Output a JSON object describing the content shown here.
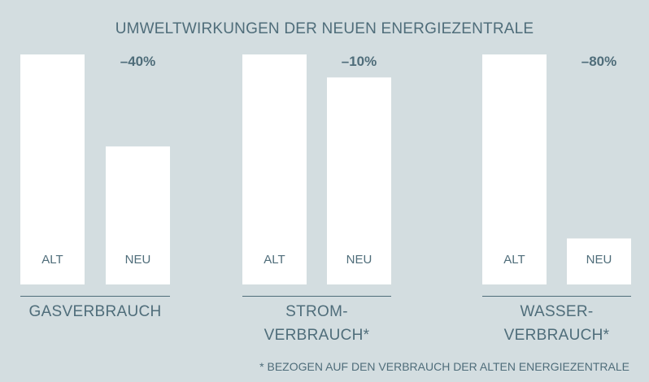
{
  "chart_data": {
    "type": "bar",
    "title": "UMWELTWIRKUNGEN DER NEUEN ENERGIEZENTRALE",
    "footnote": "* BEZOGEN AUF DEN VERBRAUCH DER ALTEN ENERGIEZENTRALE",
    "series_labels": [
      "ALT",
      "NEU"
    ],
    "ylim": [
      0,
      100
    ],
    "groups": [
      {
        "category": [
          "GASVERBRAUCH"
        ],
        "values": [
          100,
          60
        ],
        "change_label": "–40%"
      },
      {
        "category": [
          "STROM-",
          "VERBRAUCH*"
        ],
        "values": [
          100,
          90
        ],
        "change_label": "–10%"
      },
      {
        "category": [
          "WASSER-",
          "VERBRAUCH*"
        ],
        "values": [
          100,
          20
        ],
        "change_label": "–80%"
      }
    ],
    "colors": {
      "background": "#d3dde0",
      "bar": "#ffffff",
      "text": "#4f6d7a"
    }
  }
}
